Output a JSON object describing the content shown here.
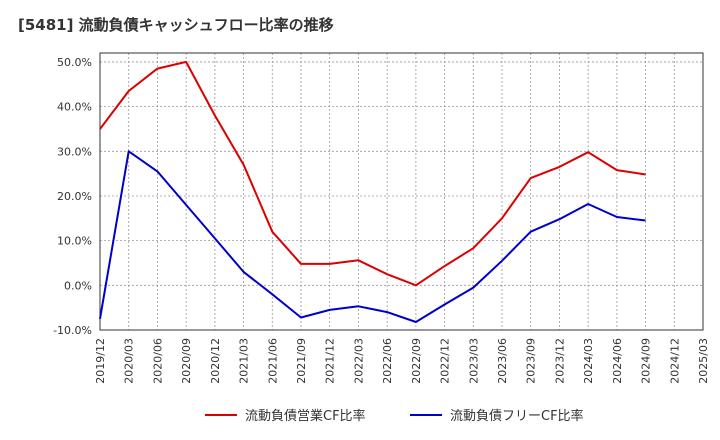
{
  "chart_data": {
    "type": "line",
    "title": "[5481]  流動負債キャッシュフロー比率の推移",
    "xlabel": "",
    "ylabel": "",
    "ylim": [
      -10,
      52
    ],
    "y_ticks": [
      -10,
      0,
      10,
      20,
      30,
      40,
      50
    ],
    "y_tick_labels": [
      "-10.0%",
      "0.0%",
      "10.0%",
      "20.0%",
      "30.0%",
      "40.0%",
      "50.0%"
    ],
    "x_tick_labels": [
      "2019/12",
      "2020/03",
      "2020/06",
      "2020/09",
      "2020/12",
      "2021/03",
      "2021/06",
      "2021/09",
      "2021/12",
      "2022/03",
      "2022/06",
      "2022/09",
      "2022/12",
      "2023/03",
      "2023/06",
      "2023/09",
      "2023/12",
      "2024/03",
      "2024/06",
      "2024/09",
      "2024/12",
      "2025/03"
    ],
    "grid": true,
    "legend_position": "bottom",
    "series": [
      {
        "name": "流動負債営業CF比率",
        "color": "#dd0000",
        "x": [
          "2019/12",
          "2020/03",
          "2020/06",
          "2020/09",
          "2020/12",
          "2021/03",
          "2021/06",
          "2021/09",
          "2021/12",
          "2022/03",
          "2022/06",
          "2022/09",
          "2022/12",
          "2023/03",
          "2023/06",
          "2023/09",
          "2023/12",
          "2024/03",
          "2024/06",
          "2024/09"
        ],
        "values": [
          35.0,
          43.5,
          48.5,
          50.0,
          38.0,
          27.0,
          12.0,
          4.8,
          4.8,
          5.6,
          2.5,
          0.0,
          4.3,
          8.3,
          15.0,
          24.0,
          26.5,
          29.8,
          25.8,
          24.8
        ]
      },
      {
        "name": "流動負債フリーCF比率",
        "color": "#0000cc",
        "x": [
          "2019/12",
          "2020/03",
          "2020/06",
          "2020/09",
          "2020/12",
          "2021/03",
          "2021/06",
          "2021/09",
          "2021/12",
          "2022/03",
          "2022/06",
          "2022/09",
          "2022/12",
          "2023/03",
          "2023/06",
          "2023/09",
          "2023/12",
          "2024/03",
          "2024/06",
          "2024/09"
        ],
        "values": [
          -7.5,
          30.0,
          25.5,
          18.0,
          10.5,
          3.0,
          -2.0,
          -7.2,
          -5.5,
          -4.7,
          -6.0,
          -8.2,
          -4.3,
          -0.5,
          5.5,
          12.0,
          14.8,
          18.2,
          15.3,
          14.5
        ]
      }
    ]
  }
}
